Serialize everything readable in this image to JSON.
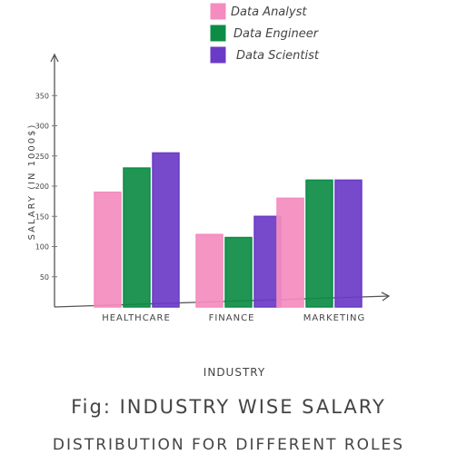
{
  "chart_data": {
    "type": "bar",
    "title": "Fig: Industry wise salary distribution for different roles",
    "title_lines": [
      "Fig: INDUSTRY WISE SALARY",
      "DISTRIBUTION FOR DIFFERENT ROLES"
    ],
    "xlabel": "INDUSTRY",
    "ylabel": "SALARY (IN 1000$)",
    "categories": [
      "HEALTHCARE",
      "FINANCE",
      "MARKETING"
    ],
    "series": [
      {
        "name": "Data Analyst",
        "color": "#f48cbf",
        "values": [
          190,
          120,
          180
        ]
      },
      {
        "name": "Data Engineer",
        "color": "#0d8c45",
        "values": [
          230,
          115,
          210
        ]
      },
      {
        "name": "Data Scientist",
        "color": "#6a3bc6",
        "values": [
          255,
          150,
          210
        ]
      }
    ],
    "yticks": [
      50,
      100,
      150,
      200,
      250,
      300,
      350
    ],
    "ylim": [
      0,
      380
    ],
    "legend_position": "top-right",
    "grid": false
  }
}
